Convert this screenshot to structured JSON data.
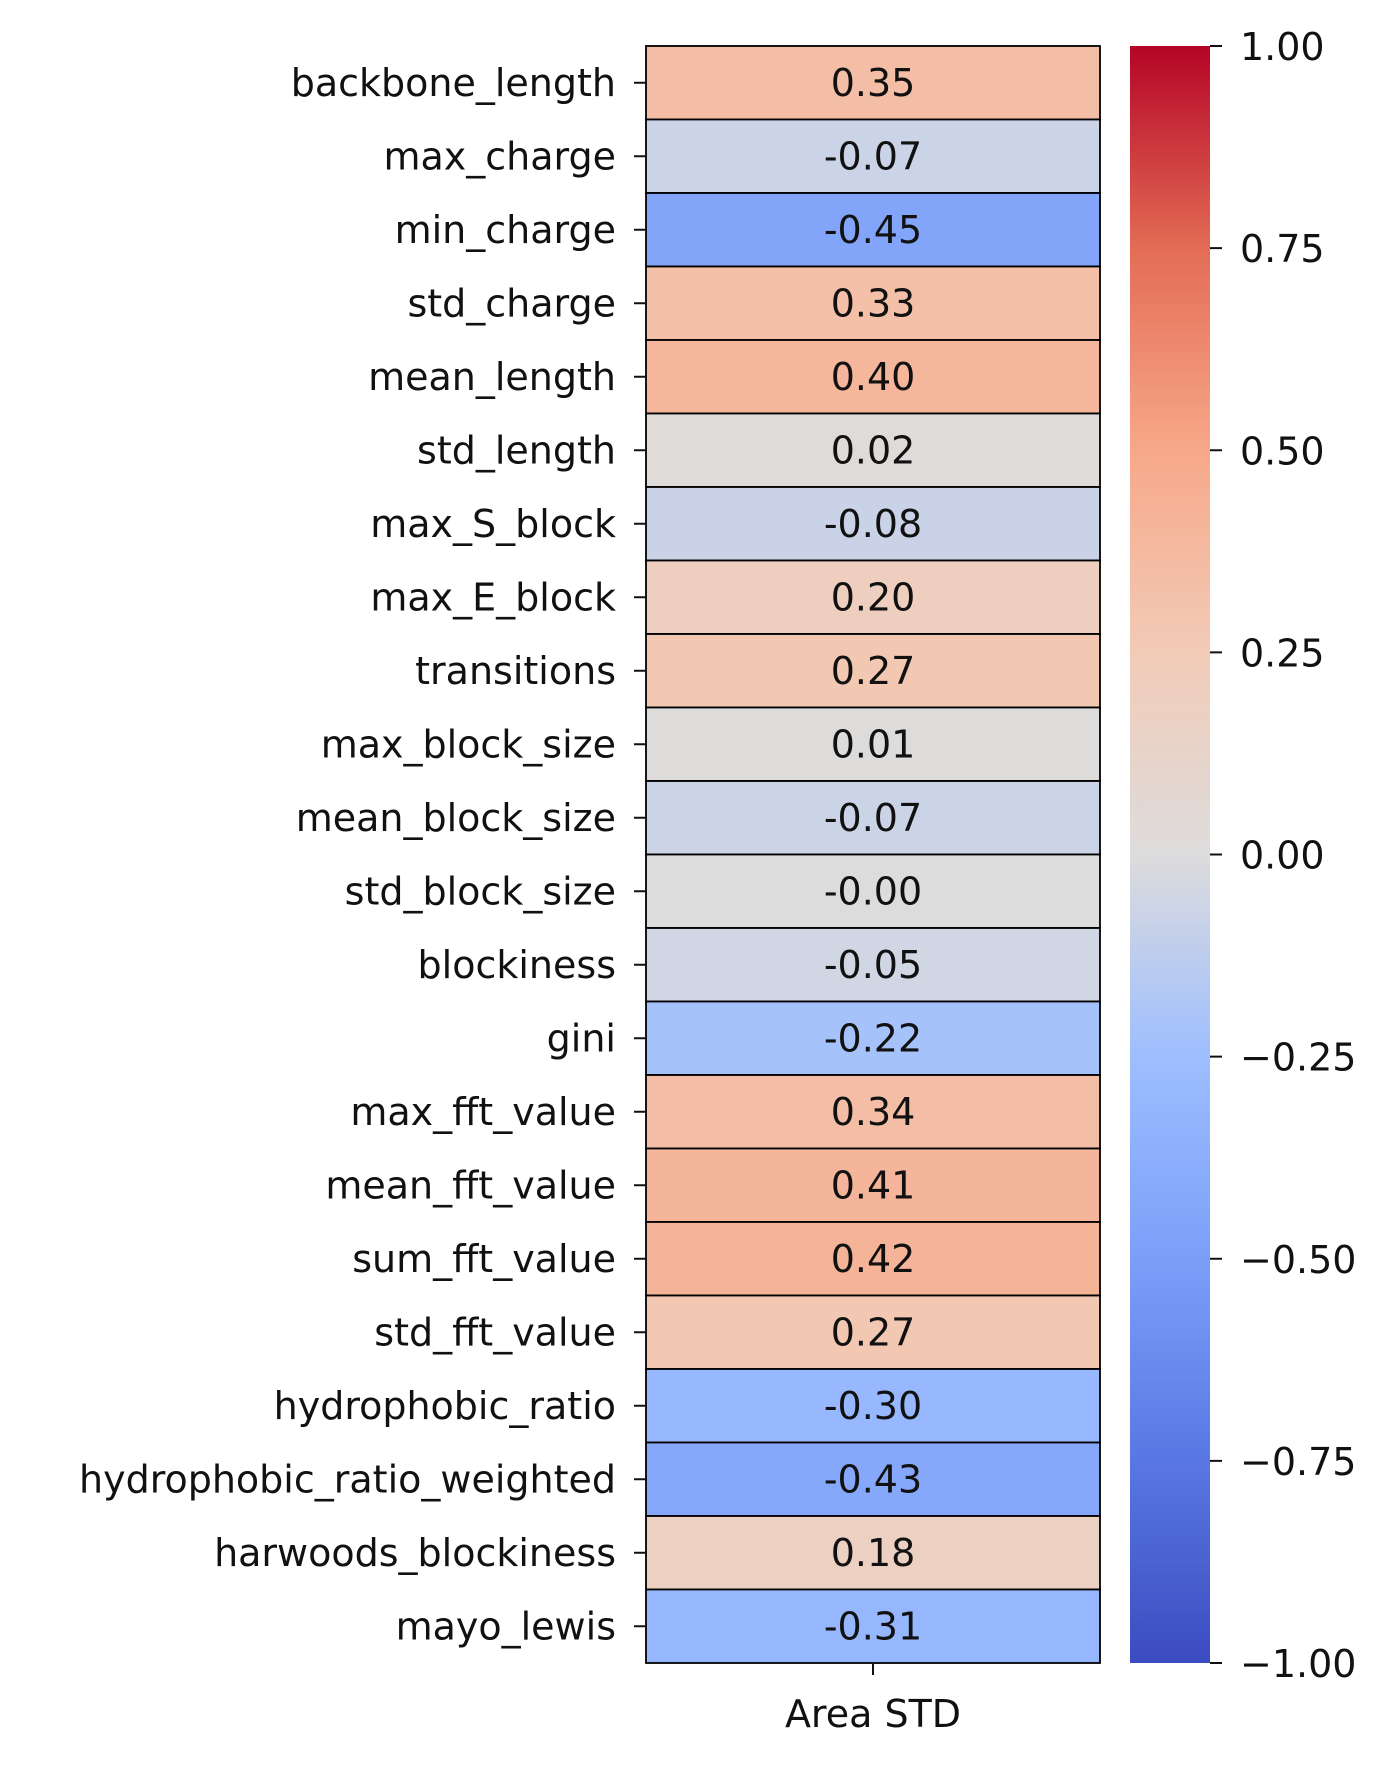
{
  "chart_data": {
    "type": "heatmap",
    "columns": [
      "Area STD"
    ],
    "rows": [
      {
        "label": "backbone_length",
        "value": 0.35,
        "text": "0.35"
      },
      {
        "label": "max_charge",
        "value": -0.07,
        "text": "-0.07"
      },
      {
        "label": "min_charge",
        "value": -0.45,
        "text": "-0.45"
      },
      {
        "label": "std_charge",
        "value": 0.33,
        "text": "0.33"
      },
      {
        "label": "mean_length",
        "value": 0.4,
        "text": "0.40"
      },
      {
        "label": "std_length",
        "value": 0.02,
        "text": "0.02"
      },
      {
        "label": "max_S_block",
        "value": -0.08,
        "text": "-0.08"
      },
      {
        "label": "max_E_block",
        "value": 0.2,
        "text": "0.20"
      },
      {
        "label": "transitions",
        "value": 0.27,
        "text": "0.27"
      },
      {
        "label": "max_block_size",
        "value": 0.01,
        "text": "0.01"
      },
      {
        "label": "mean_block_size",
        "value": -0.07,
        "text": "-0.07"
      },
      {
        "label": "std_block_size",
        "value": -0.0,
        "text": "-0.00"
      },
      {
        "label": "blockiness",
        "value": -0.05,
        "text": "-0.05"
      },
      {
        "label": "gini",
        "value": -0.22,
        "text": "-0.22"
      },
      {
        "label": "max_fft_value",
        "value": 0.34,
        "text": "0.34"
      },
      {
        "label": "mean_fft_value",
        "value": 0.41,
        "text": "0.41"
      },
      {
        "label": "sum_fft_value",
        "value": 0.42,
        "text": "0.42"
      },
      {
        "label": "std_fft_value",
        "value": 0.27,
        "text": "0.27"
      },
      {
        "label": "hydrophobic_ratio",
        "value": -0.3,
        "text": "-0.30"
      },
      {
        "label": "hydrophobic_ratio_weighted",
        "value": -0.43,
        "text": "-0.43"
      },
      {
        "label": "harwoods_blockiness",
        "value": 0.18,
        "text": "0.18"
      },
      {
        "label": "mayo_lewis",
        "value": -0.31,
        "text": "-0.31"
      }
    ],
    "colorbar": {
      "colormap": "coolwarm",
      "vmin": -1.0,
      "vmax": 1.0,
      "ticks": [
        1.0,
        0.75,
        0.5,
        0.25,
        0.0,
        -0.25,
        -0.5,
        -0.75,
        -1.0
      ],
      "tick_labels": [
        "1.00",
        "0.75",
        "0.50",
        "0.25",
        "0.00",
        "−0.25",
        "−0.50",
        "−0.75",
        "−1.00"
      ]
    },
    "grid": true,
    "colors": {
      "cell_border": "#000000",
      "low": "#3b4cc0",
      "mid": "#dddddd",
      "high": "#b40426"
    }
  }
}
